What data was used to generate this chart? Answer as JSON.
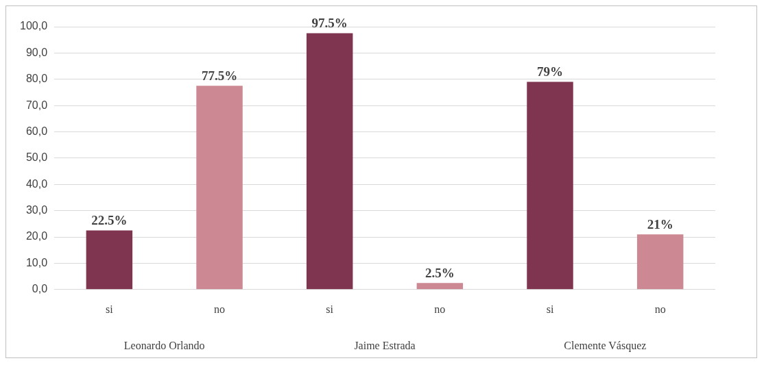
{
  "chart_data": {
    "type": "bar",
    "categories": [
      "si",
      "no",
      "si",
      "no",
      "si",
      "no"
    ],
    "values": [
      22.5,
      77.5,
      97.5,
      2.5,
      79,
      21
    ],
    "colors": [
      "#7f3550",
      "#cc8893",
      "#7f3550",
      "#cc8893",
      "#7f3550",
      "#cc8893"
    ],
    "value_labels": [
      "22.5%",
      "77.5%",
      "97.5%",
      "2.5%",
      "79%",
      "21%"
    ],
    "ylim": [
      0,
      100
    ],
    "yticks": [
      {
        "value": 0,
        "label": "0,0"
      },
      {
        "value": 10,
        "label": "10,0"
      },
      {
        "value": 20,
        "label": "20,0"
      },
      {
        "value": 30,
        "label": "30,0"
      },
      {
        "value": 40,
        "label": "40,0"
      },
      {
        "value": 50,
        "label": "50,0"
      },
      {
        "value": 60,
        "label": "60,0"
      },
      {
        "value": 70,
        "label": "70,0"
      },
      {
        "value": 80,
        "label": "80,0"
      },
      {
        "value": 90,
        "label": "90,0"
      },
      {
        "value": 100,
        "label": "100,0"
      }
    ],
    "grid": "y",
    "legend": false,
    "annotations": [
      "Leonardo Orlando",
      "Jaime Estrada",
      "Clemente Vásquez"
    ]
  }
}
